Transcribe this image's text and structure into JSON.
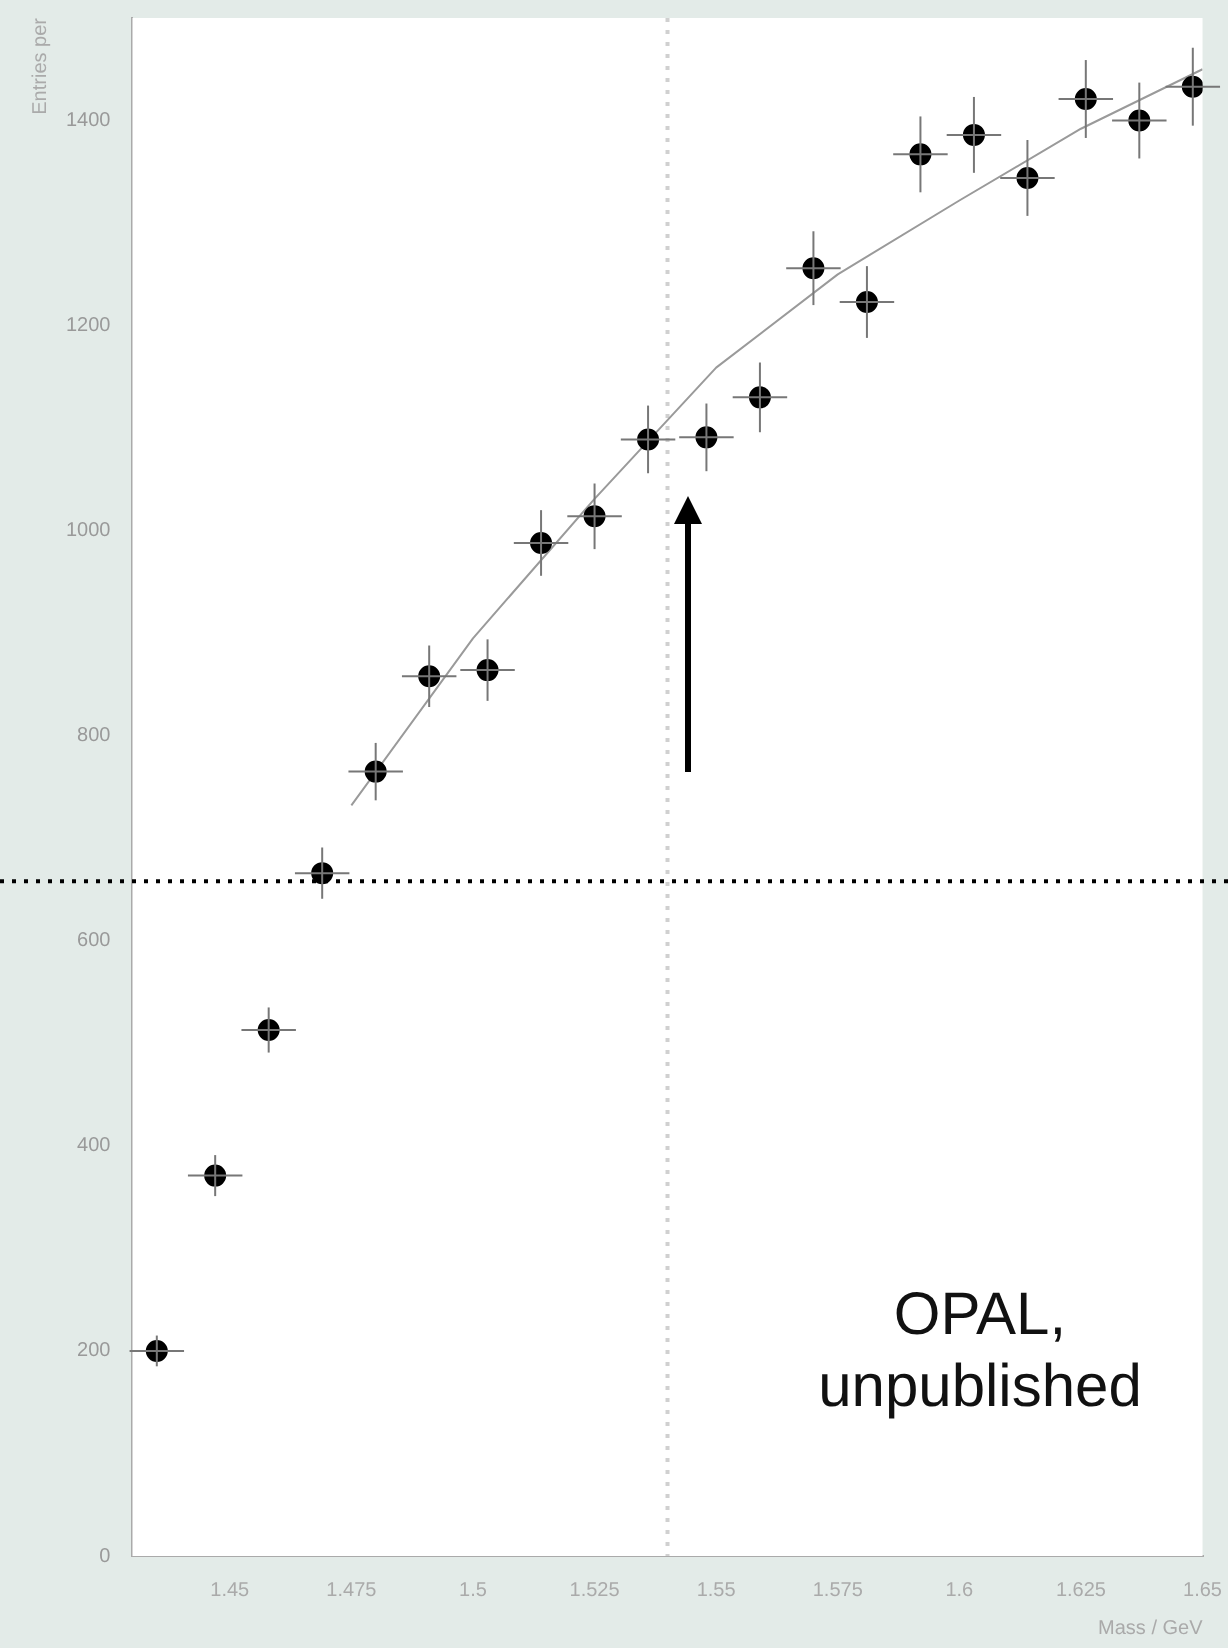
{
  "chart_data": {
    "type": "scatter",
    "xlabel": "Mass / GeV",
    "ylabel": "Entries per",
    "grid": false,
    "xlim": [
      1.43,
      1.65
    ],
    "ylim": [
      0,
      1500
    ],
    "xticks": [
      1.45,
      1.475,
      1.5,
      1.525,
      1.55,
      1.575,
      1.6,
      1.625,
      1.65
    ],
    "yticks": [
      0,
      200,
      400,
      600,
      800,
      1000,
      1200,
      1400
    ],
    "series": [
      {
        "marker": "circle",
        "color": "#000000",
        "x": [
          1.435,
          1.447,
          1.458,
          1.469,
          1.48,
          1.491,
          1.503,
          1.514,
          1.525,
          1.536,
          1.548,
          1.559,
          1.57,
          1.581,
          1.592,
          1.603,
          1.614,
          1.626,
          1.637,
          1.648
        ],
        "values": [
          200,
          371,
          513,
          666,
          765,
          858,
          864,
          988,
          1014,
          1089,
          1091,
          1130,
          1256,
          1223,
          1367,
          1386,
          1344,
          1421,
          1400,
          1433
        ],
        "errors": [
          15,
          20,
          22,
          25,
          28,
          30,
          30,
          32,
          32,
          33,
          33,
          34,
          36,
          35,
          37,
          37,
          37,
          38,
          37,
          38
        ],
        "xerrors": [
          0.0056,
          0.0056,
          0.0056,
          0.0056,
          0.0056,
          0.0056,
          0.0056,
          0.0056,
          0.0056,
          0.0056,
          0.0056,
          0.0056,
          0.0056,
          0.0056,
          0.0056,
          0.0056,
          0.0056,
          0.0056,
          0.0056,
          0.0056
        ]
      },
      {
        "type": "line",
        "color": "#9a9a9a",
        "x": [
          1.475,
          1.5,
          1.525,
          1.55,
          1.575,
          1.6,
          1.625,
          1.65
        ],
        "values": [
          732,
          895,
          1031,
          1159,
          1250,
          1322,
          1392,
          1450
        ]
      }
    ],
    "ref_lines": [
      {
        "axis": "y",
        "value": 658,
        "line_style": "dotted",
        "color": "#000000"
      },
      {
        "axis": "x",
        "value": 1.54,
        "line_style": "dotted",
        "color": "#d0d0d0"
      }
    ],
    "annotations": [
      "OPAL, unpublished"
    ]
  }
}
